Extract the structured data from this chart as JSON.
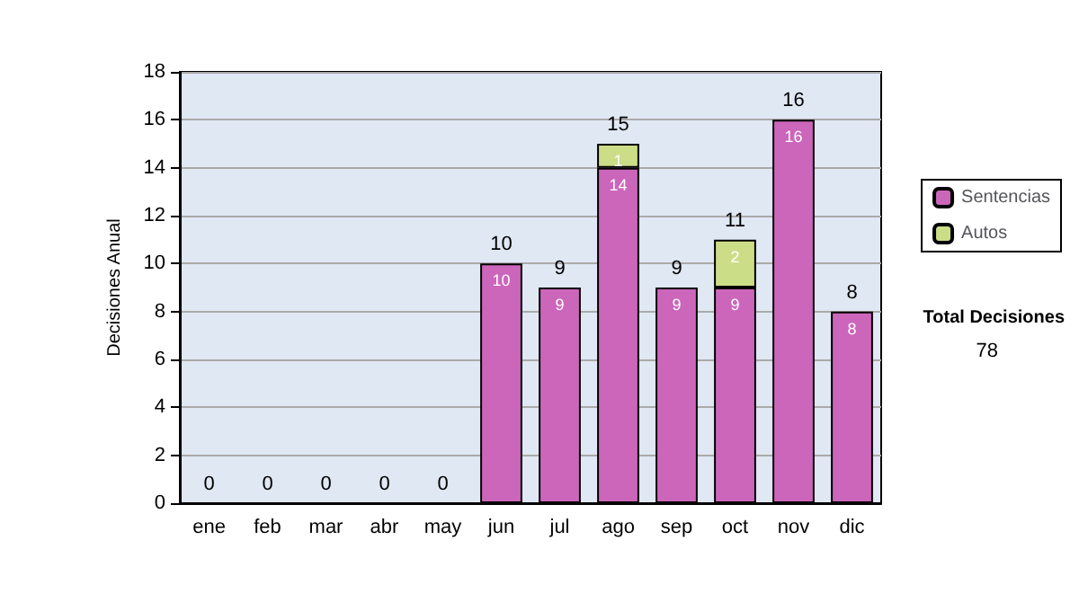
{
  "chart_data": {
    "type": "bar",
    "stacked": true,
    "ylabel": "Decisiones Anual",
    "categories": [
      "ene",
      "feb",
      "mar",
      "abr",
      "may",
      "jun",
      "jul",
      "ago",
      "sep",
      "oct",
      "nov",
      "dic"
    ],
    "series": [
      {
        "name": "Sentencias",
        "color": "#cc66bb",
        "values": [
          0,
          0,
          0,
          0,
          0,
          10,
          9,
          14,
          9,
          9,
          16,
          8
        ],
        "value_labels": [
          null,
          null,
          null,
          null,
          null,
          "10",
          "9",
          "14",
          "9",
          "9",
          "16",
          "8"
        ]
      },
      {
        "name": "Autos",
        "color": "#ccdd88",
        "values": [
          0,
          0,
          0,
          0,
          0,
          0,
          0,
          1,
          0,
          2,
          0,
          0
        ],
        "value_labels": [
          null,
          null,
          null,
          null,
          null,
          null,
          null,
          "1",
          null,
          "2",
          null,
          null
        ]
      }
    ],
    "totals": [
      "0",
      "0",
      "0",
      "0",
      "0",
      "10",
      "9",
      "15",
      "9",
      "11",
      "16",
      "8"
    ],
    "ylim": [
      0,
      18
    ],
    "yticks": [
      0,
      2,
      4,
      6,
      8,
      10,
      12,
      14,
      16,
      18
    ],
    "grid": "y",
    "legend": "right",
    "annotations": [
      "Total Decisiones",
      "78"
    ]
  }
}
